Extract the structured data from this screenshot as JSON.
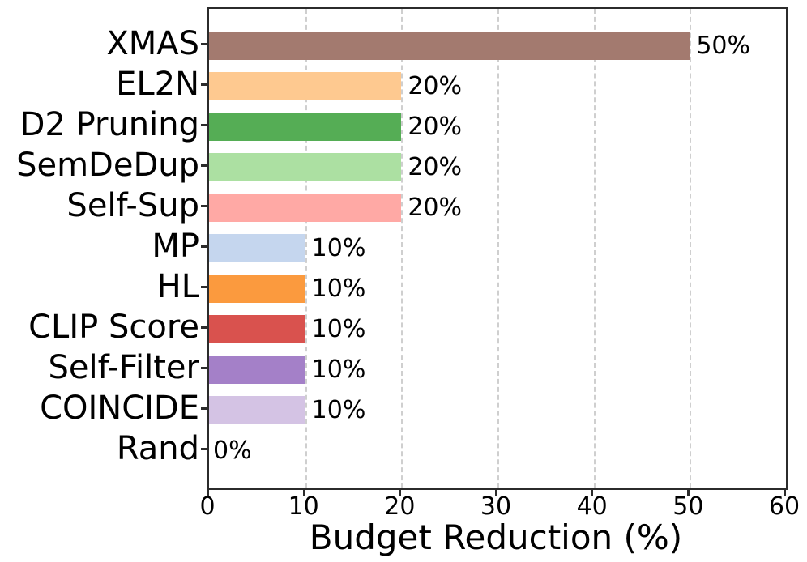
{
  "chart_data": {
    "type": "bar",
    "orientation": "horizontal",
    "title": "",
    "xlabel": "Budget Reduction (%)",
    "ylabel": "",
    "xlim": [
      0,
      60
    ],
    "xticks": [
      0,
      10,
      20,
      30,
      40,
      50,
      60
    ],
    "grid": "vertical dashed gridlines at 10,20,30,40,50, drawn behind bars",
    "legend": "none",
    "categories": [
      "XMAS",
      "EL2N",
      "D2 Pruning",
      "SemDeDup",
      "Self-Sup",
      "MP",
      "HL",
      "CLIP Score",
      "Self-Filter",
      "COINCIDE",
      "Rand"
    ],
    "values": [
      50,
      20,
      20,
      20,
      20,
      10,
      10,
      10,
      10,
      10,
      0
    ],
    "value_labels": [
      "50%",
      "20%",
      "20%",
      "20%",
      "20%",
      "10%",
      "10%",
      "10%",
      "10%",
      "10%",
      "0%"
    ],
    "bar_colors": [
      "#a37a6f",
      "#fec990",
      "#55ad55",
      "#ace0a2",
      "#ffa9a5",
      "#c5d6ee",
      "#fb9a3e",
      "#d9524e",
      "#a480c8",
      "#d4c3e4",
      "#ffffff"
    ]
  },
  "colors": {
    "background": "#ffffff",
    "spine": "#2b2b2b",
    "grid": "#cfcfcf",
    "text": "#000000"
  }
}
